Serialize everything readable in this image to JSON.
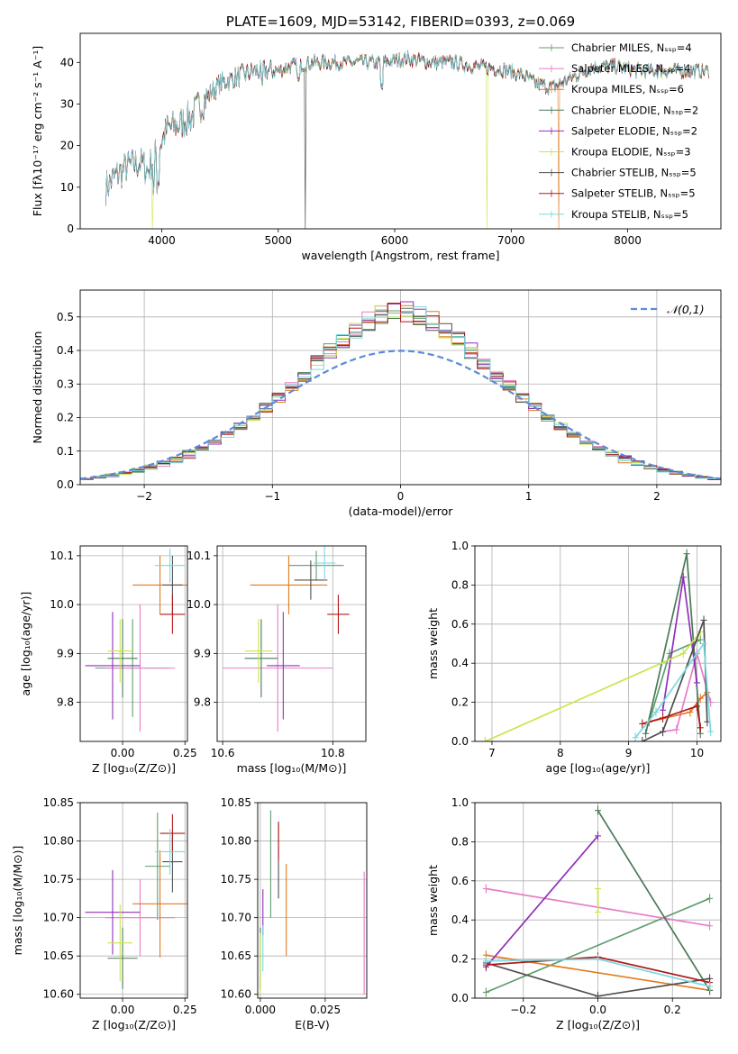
{
  "colors": [
    "#5f9e6e",
    "#e87dc8",
    "#e07b20",
    "#4a7a58",
    "#9030b8",
    "#c8e64a",
    "#505050",
    "#b01818",
    "#7ad8e0"
  ],
  "chart_data": [
    {
      "id": "spectrum",
      "type": "line",
      "title": "PLATE=1609, MJD=53142, FIBERID=0393, z=0.069",
      "xlabel": "wavelength [Angstrom, rest frame]",
      "ylabel": "Flux [fλ10⁻¹⁷ erg cm⁻² s⁻¹ A⁻¹]",
      "xlim": [
        3300,
        8800
      ],
      "ylim": [
        0,
        47
      ],
      "xticks": [
        4000,
        5000,
        6000,
        7000,
        8000
      ],
      "yticks": [
        0,
        10,
        20,
        30,
        40
      ],
      "continuum": [
        [
          3520,
          10
        ],
        [
          3620,
          13
        ],
        [
          3720,
          15
        ],
        [
          3820,
          16
        ],
        [
          3880,
          14
        ],
        [
          3950,
          18
        ],
        [
          4050,
          24
        ],
        [
          4150,
          25
        ],
        [
          4250,
          27
        ],
        [
          4400,
          32
        ],
        [
          4500,
          35
        ],
        [
          4700,
          37
        ],
        [
          4800,
          38
        ],
        [
          4900,
          38
        ],
        [
          5000,
          38
        ],
        [
          5100,
          39
        ],
        [
          5300,
          40
        ],
        [
          5500,
          40
        ],
        [
          5700,
          40
        ],
        [
          5900,
          40
        ],
        [
          6100,
          41
        ],
        [
          6300,
          40
        ],
        [
          6500,
          40
        ],
        [
          6700,
          39
        ],
        [
          6900,
          38.5
        ],
        [
          7100,
          37
        ],
        [
          7200,
          35
        ],
        [
          7350,
          34
        ],
        [
          7500,
          36
        ],
        [
          7700,
          39
        ],
        [
          7900,
          39
        ],
        [
          8100,
          38
        ],
        [
          8300,
          38
        ],
        [
          8500,
          38
        ],
        [
          8700,
          38
        ]
      ],
      "drops": [
        {
          "x": 3920,
          "series": 5
        },
        {
          "x": 5230,
          "series": 6
        },
        {
          "x": 6790,
          "series": 5
        },
        {
          "x": 7410,
          "series": 2
        }
      ],
      "legend": [
        "Chabrier MILES, Nₛₛₚ=4",
        "Salpeter MILES, Nₛₛₚ=4",
        "Kroupa MILES, Nₛₛₚ=6",
        "Chabrier ELODIE, Nₛₛₚ=2",
        "Salpeter ELODIE, Nₛₛₚ=2",
        "Kroupa ELODIE, Nₛₛₚ=3",
        "Chabrier STELIB, Nₛₛₚ=5",
        "Salpeter STELIB, Nₛₛₚ=5",
        "Kroupa STELIB, Nₛₛₚ=5"
      ],
      "legend_position": "top-right"
    },
    {
      "id": "residuals",
      "type": "histogram",
      "xlabel": "(data-model)/error",
      "ylabel": "Normed distribution",
      "xlim": [
        -2.5,
        2.5
      ],
      "ylim": [
        0,
        0.58
      ],
      "xticks": [
        -2,
        -1,
        0,
        1,
        2
      ],
      "yticks": [
        0.0,
        0.1,
        0.2,
        0.3,
        0.4,
        0.5
      ],
      "bin_width": 0.1,
      "reference": {
        "name": "𝒩(0,1)",
        "style": "dashed",
        "color": "#5b8bd8"
      },
      "grid": true
    },
    {
      "id": "z-age",
      "type": "errorbar",
      "xlabel": "Z [log₁₀(Z/Z⊙)]",
      "ylabel": "age  [log₁₀(age/yr)]",
      "xlim": [
        -0.17,
        0.26
      ],
      "ylim": [
        9.72,
        10.12
      ],
      "xticks": [
        0.0,
        0.25
      ],
      "yticks": [
        9.8,
        9.9,
        10.0,
        10.1
      ],
      "points": [
        {
          "s": 0,
          "x": 0.04,
          "y": 9.87,
          "xerr": 0.15,
          "yerr": 0.1
        },
        {
          "s": 1,
          "x": 0.07,
          "y": 9.87,
          "xerr": 0.14,
          "yerr": 0.13
        },
        {
          "s": 2,
          "x": 0.15,
          "y": 10.04,
          "xerr": 0.11,
          "yerr": 0.06
        },
        {
          "s": 3,
          "x": 0.0,
          "y": 9.89,
          "xerr": 0.06,
          "yerr": 0.08
        },
        {
          "s": 4,
          "x": -0.04,
          "y": 9.875,
          "xerr": 0.11,
          "yerr": 0.11
        },
        {
          "s": 5,
          "x": -0.01,
          "y": 9.905,
          "xerr": 0.05,
          "yerr": 0.065
        },
        {
          "s": 6,
          "x": 0.2,
          "y": 10.04,
          "xerr": 0.04,
          "yerr": 0.06
        },
        {
          "s": 7,
          "x": 0.2,
          "y": 9.98,
          "xerr": 0.05,
          "yerr": 0.04
        },
        {
          "s": 8,
          "x": 0.19,
          "y": 10.08,
          "xerr": 0.06,
          "yerr": 0.035
        }
      ]
    },
    {
      "id": "mass-age",
      "type": "errorbar",
      "xlabel": "mass [log₁₀(M/M⊙)]",
      "ylabel": "",
      "xlim": [
        10.59,
        10.86
      ],
      "ylim": [
        9.72,
        10.12
      ],
      "xticks": [
        10.6,
        10.8
      ],
      "yticks": [
        9.8,
        9.9,
        10.0,
        10.1
      ],
      "points": [
        {
          "s": 0,
          "x": 10.77,
          "y": 10.08,
          "xerr": 0.05,
          "yerr": 0.03
        },
        {
          "s": 1,
          "x": 10.7,
          "y": 9.87,
          "xerr": 0.1,
          "yerr": 0.13
        },
        {
          "s": 2,
          "x": 10.72,
          "y": 10.04,
          "xerr": 0.07,
          "yerr": 0.06
        },
        {
          "s": 3,
          "x": 10.67,
          "y": 9.89,
          "xerr": 0.03,
          "yerr": 0.08
        },
        {
          "s": 4,
          "x": 10.71,
          "y": 9.875,
          "xerr": 0.03,
          "yerr": 0.11
        },
        {
          "s": 5,
          "x": 10.665,
          "y": 9.905,
          "xerr": 0.025,
          "yerr": 0.065
        },
        {
          "s": 6,
          "x": 10.76,
          "y": 10.05,
          "xerr": 0.03,
          "yerr": 0.04
        },
        {
          "s": 7,
          "x": 10.81,
          "y": 9.98,
          "xerr": 0.02,
          "yerr": 0.04
        },
        {
          "s": 8,
          "x": 10.785,
          "y": 10.085,
          "xerr": 0.02,
          "yerr": 0.035
        }
      ]
    },
    {
      "id": "age-weight",
      "type": "line",
      "xlabel": "age  [log₁₀(age/yr)]",
      "ylabel": "mass weight",
      "xlim": [
        6.75,
        10.35
      ],
      "ylim": [
        0,
        1
      ],
      "xticks": [
        7,
        8,
        9,
        10
      ],
      "yticks": [
        0.0,
        0.2,
        0.4,
        0.6,
        0.8,
        1.0
      ],
      "lines": [
        {
          "s": 0,
          "pts": [
            [
              9.3,
              0.1
            ],
            [
              9.6,
              0.45
            ],
            [
              10.05,
              0.52
            ]
          ]
        },
        {
          "s": 1,
          "pts": [
            [
              9.5,
              0.05
            ],
            [
              9.7,
              0.06
            ],
            [
              10.0,
              0.45
            ],
            [
              10.2,
              0.2
            ]
          ]
        },
        {
          "s": 2,
          "pts": [
            [
              9.3,
              0.1
            ],
            [
              9.9,
              0.15
            ],
            [
              10.05,
              0.22
            ],
            [
              10.15,
              0.25
            ]
          ]
        },
        {
          "s": 3,
          "pts": [
            [
              9.25,
              0.04
            ],
            [
              9.85,
              0.96
            ],
            [
              10.05,
              0.04
            ]
          ]
        },
        {
          "s": 4,
          "pts": [
            [
              9.5,
              0.16
            ],
            [
              9.8,
              0.84
            ],
            [
              10.0,
              0.3
            ]
          ]
        },
        {
          "s": 5,
          "pts": [
            [
              6.9,
              0.0
            ],
            [
              9.8,
              0.45
            ],
            [
              10.05,
              0.56
            ]
          ]
        },
        {
          "s": 6,
          "pts": [
            [
              9.2,
              0.0
            ],
            [
              9.5,
              0.05
            ],
            [
              10.1,
              0.62
            ],
            [
              10.15,
              0.1
            ]
          ]
        },
        {
          "s": 7,
          "pts": [
            [
              9.2,
              0.09
            ],
            [
              9.5,
              0.12
            ],
            [
              10.0,
              0.18
            ],
            [
              10.05,
              0.07
            ]
          ]
        },
        {
          "s": 8,
          "pts": [
            [
              9.1,
              0.02
            ],
            [
              9.4,
              0.15
            ],
            [
              10.1,
              0.5
            ],
            [
              10.2,
              0.05
            ]
          ]
        }
      ]
    },
    {
      "id": "z-mass",
      "type": "errorbar",
      "xlabel": "Z [log₁₀(Z/Z⊙)]",
      "ylabel": "mass [log₁₀(M/M⊙)]",
      "xlim": [
        -0.17,
        0.26
      ],
      "ylim": [
        10.595,
        10.85
      ],
      "xticks": [
        0.0,
        0.25
      ],
      "yticks": [
        10.6,
        10.65,
        10.7,
        10.75,
        10.8,
        10.85
      ],
      "points": [
        {
          "s": 0,
          "x": 0.14,
          "y": 10.767,
          "xerr": 0.05,
          "yerr": 0.07
        },
        {
          "s": 1,
          "x": 0.07,
          "y": 10.7,
          "xerr": 0.14,
          "yerr": 0.05
        },
        {
          "s": 2,
          "x": 0.15,
          "y": 10.718,
          "xerr": 0.11,
          "yerr": 0.07
        },
        {
          "s": 3,
          "x": 0.0,
          "y": 10.647,
          "xerr": 0.06,
          "yerr": 0.04
        },
        {
          "s": 4,
          "x": -0.04,
          "y": 10.707,
          "xerr": 0.11,
          "yerr": 0.055
        },
        {
          "s": 5,
          "x": -0.01,
          "y": 10.667,
          "xerr": 0.05,
          "yerr": 0.05
        },
        {
          "s": 6,
          "x": 0.2,
          "y": 10.773,
          "xerr": 0.04,
          "yerr": 0.04
        },
        {
          "s": 7,
          "x": 0.2,
          "y": 10.81,
          "xerr": 0.05,
          "yerr": 0.025
        },
        {
          "s": 8,
          "x": 0.19,
          "y": 10.786,
          "xerr": 0.06,
          "yerr": 0.03
        }
      ]
    },
    {
      "id": "ebv-mass",
      "type": "errorbar",
      "xlabel": "E(B-V)",
      "ylabel": "",
      "xlim": [
        -0.001,
        0.041
      ],
      "ylim": [
        10.595,
        10.85
      ],
      "xticks": [
        0.0,
        0.025
      ],
      "yticks": [
        10.6,
        10.65,
        10.7,
        10.75,
        10.8,
        10.85
      ],
      "points": [
        {
          "s": 0,
          "x": 0.004,
          "y": 10.77,
          "xerr": 0,
          "yerr": 0.07
        },
        {
          "s": 1,
          "x": 0.04,
          "y": 10.68,
          "xerr": 0,
          "yerr": 0.08
        },
        {
          "s": 2,
          "x": 0.01,
          "y": 10.71,
          "xerr": 0,
          "yerr": 0.06
        },
        {
          "s": 3,
          "x": 0.0,
          "y": 10.647,
          "xerr": 0,
          "yerr": 0.04
        },
        {
          "s": 4,
          "x": 0.001,
          "y": 10.707,
          "xerr": 0,
          "yerr": 0.03
        },
        {
          "s": 5,
          "x": 0.0,
          "y": 10.64,
          "xerr": 0,
          "yerr": 0.04
        },
        {
          "s": 6,
          "x": 0.007,
          "y": 10.775,
          "xerr": 0,
          "yerr": 0.05
        },
        {
          "s": 7,
          "x": 0.007,
          "y": 10.8,
          "xerr": 0,
          "yerr": 0.025
        },
        {
          "s": 8,
          "x": 0.001,
          "y": 10.66,
          "xerr": 0,
          "yerr": 0.03
        }
      ]
    },
    {
      "id": "z-weight",
      "type": "line",
      "xlabel": "Z [log₁₀(Z/Z⊙)]",
      "ylabel": "mass weight",
      "xlim": [
        -0.33,
        0.33
      ],
      "ylim": [
        0,
        1
      ],
      "xticks": [
        -0.2,
        0.0,
        0.2
      ],
      "yticks": [
        0.0,
        0.2,
        0.4,
        0.6,
        0.8,
        1.0
      ],
      "lines": [
        {
          "s": 0,
          "pts": [
            [
              -0.3,
              0.03
            ],
            [
              0.3,
              0.51
            ]
          ]
        },
        {
          "s": 1,
          "pts": [
            [
              -0.3,
              0.56
            ],
            [
              0.3,
              0.37
            ]
          ]
        },
        {
          "s": 2,
          "pts": [
            [
              -0.3,
              0.22
            ],
            [
              0.3,
              0.04
            ]
          ]
        },
        {
          "s": 3,
          "pts": [
            [
              0.0,
              0.96
            ],
            [
              0.3,
              0.04
            ]
          ]
        },
        {
          "s": 4,
          "pts": [
            [
              -0.3,
              0.16
            ],
            [
              0.0,
              0.83
            ]
          ]
        },
        {
          "s": 5,
          "pts": [
            [
              0.0,
              0.44
            ],
            [
              0.0,
              0.56
            ]
          ]
        },
        {
          "s": 6,
          "pts": [
            [
              -0.3,
              0.18
            ],
            [
              0.0,
              0.01
            ],
            [
              0.3,
              0.1
            ]
          ]
        },
        {
          "s": 7,
          "pts": [
            [
              -0.3,
              0.17
            ],
            [
              0.0,
              0.21
            ],
            [
              0.3,
              0.08
            ]
          ]
        },
        {
          "s": 8,
          "pts": [
            [
              -0.3,
              0.19
            ],
            [
              0.0,
              0.2
            ],
            [
              0.3,
              0.06
            ]
          ]
        }
      ]
    }
  ]
}
